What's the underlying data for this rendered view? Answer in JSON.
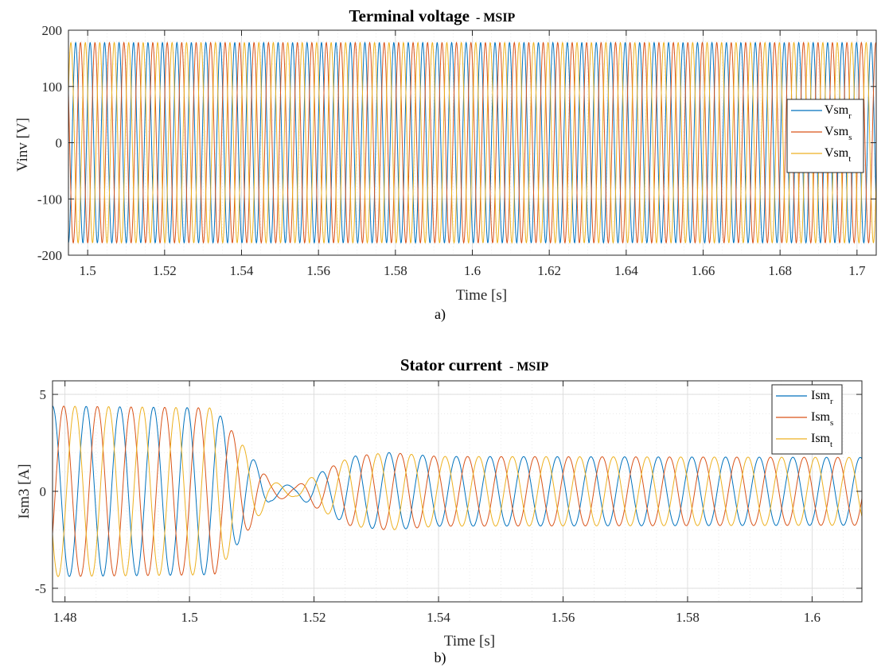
{
  "colors": {
    "r": "#0072BD",
    "s": "#D95319",
    "t": "#EDB120",
    "grid": "#d9d9d9",
    "axis": "#262626"
  },
  "chart_data": [
    {
      "type": "line",
      "title": "Terminal voltage",
      "title_suffix": "- MSIP",
      "xlabel": "Time [s]",
      "ylabel": "Vinv [V]",
      "caption": "a)",
      "xlim": [
        1.495,
        1.705
      ],
      "ylim": [
        -200,
        200
      ],
      "xticks": [
        1.5,
        1.52,
        1.54,
        1.56,
        1.58,
        1.6,
        1.62,
        1.64,
        1.66,
        1.68,
        1.7
      ],
      "xtick_labels": [
        "1.5",
        "1.52",
        "1.54",
        "1.56",
        "1.58",
        "1.6",
        "1.62",
        "1.64",
        "1.66",
        "1.68",
        "1.7"
      ],
      "yticks": [
        -200,
        -100,
        0,
        100,
        200
      ],
      "ytick_labels": [
        "-200",
        "-100",
        "0",
        "100",
        "200"
      ],
      "grid": true,
      "legend_position": "right",
      "series": [
        {
          "name": "Vsm",
          "sub": "r",
          "color": "#0072BD",
          "amplitude": 178,
          "frequency_hz": 266,
          "phase_deg": -90
        },
        {
          "name": "Vsm",
          "sub": "s",
          "color": "#D95319",
          "amplitude": 178,
          "frequency_hz": 266,
          "phase_deg": -210
        },
        {
          "name": "Vsm",
          "sub": "t",
          "color": "#EDB120",
          "amplitude": 178,
          "frequency_hz": 266,
          "phase_deg": 30
        }
      ]
    },
    {
      "type": "line",
      "title": "Stator current",
      "title_suffix": "- MSIP",
      "xlabel": "Time [s]",
      "ylabel": "Ism3 [A]",
      "caption": "b)",
      "xlim": [
        1.478,
        1.608
      ],
      "ylim": [
        -5.7,
        5.7
      ],
      "xticks": [
        1.48,
        1.5,
        1.52,
        1.54,
        1.56,
        1.58,
        1.6
      ],
      "xtick_labels": [
        "1.48",
        "1.5",
        "1.52",
        "1.54",
        "1.56",
        "1.58",
        "1.6"
      ],
      "yticks": [
        -5,
        0,
        5
      ],
      "ytick_labels": [
        "-5",
        "0",
        "5"
      ],
      "grid": true,
      "legend_position": "top-right",
      "series": [
        {
          "name": "Ism",
          "sub": "r",
          "color": "#0072BD",
          "phase_deg": 90
        },
        {
          "name": "Ism",
          "sub": "s",
          "color": "#D95319",
          "phase_deg": -30
        },
        {
          "name": "Ism",
          "sub": "t",
          "color": "#EDB120",
          "phase_deg": 210
        }
      ],
      "waveform": {
        "frequency_hz": 185,
        "envelope": [
          [
            1.478,
            4.4
          ],
          [
            1.504,
            4.3
          ],
          [
            1.509,
            2.2
          ],
          [
            1.513,
            0.5
          ],
          [
            1.517,
            0.25
          ],
          [
            1.52,
            0.8
          ],
          [
            1.526,
            1.8
          ],
          [
            1.532,
            2.0
          ],
          [
            1.54,
            1.8
          ],
          [
            1.608,
            1.75
          ]
        ]
      }
    }
  ]
}
